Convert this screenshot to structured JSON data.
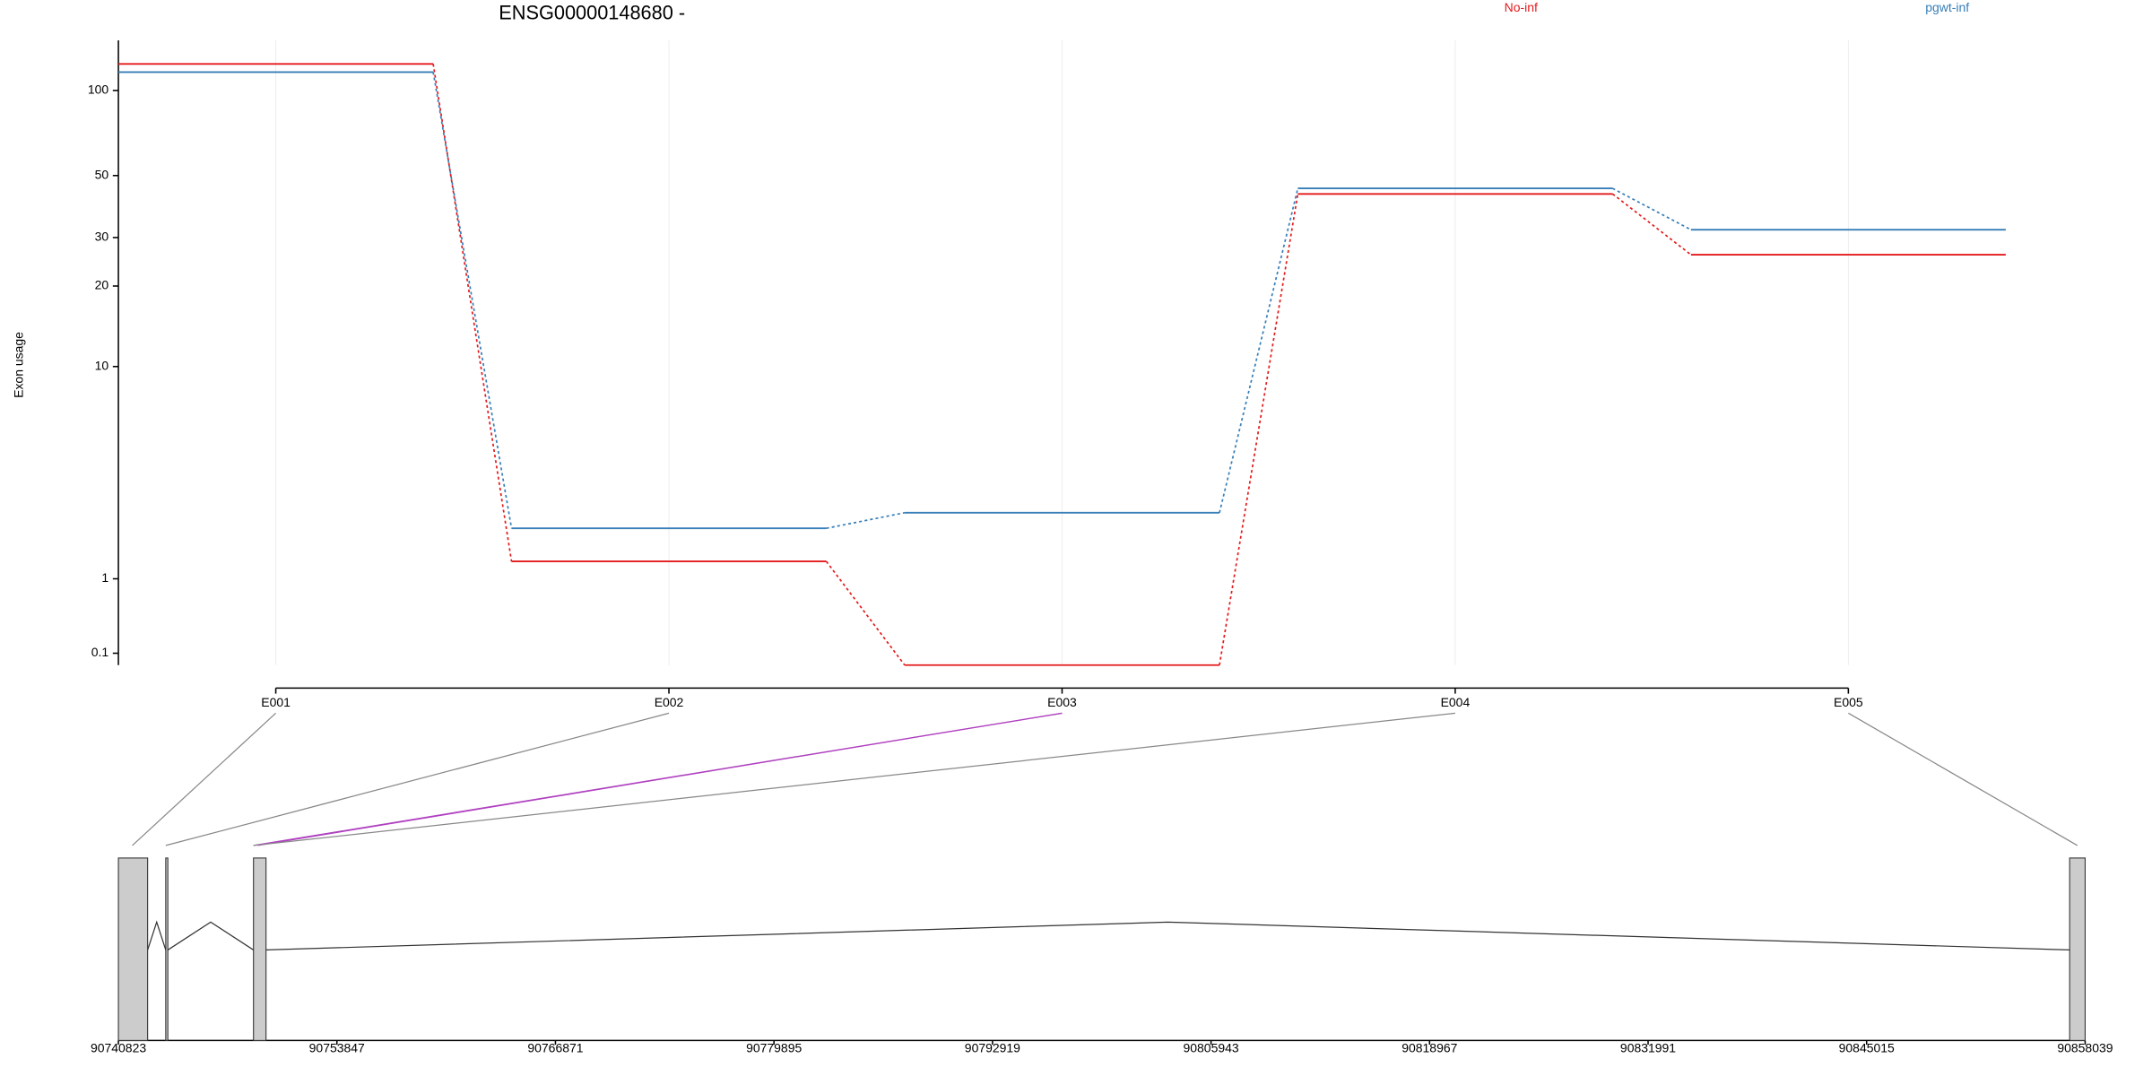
{
  "chart_data": [
    {
      "type": "line",
      "title": "ENSG00000148680 -",
      "ylabel": "Exon usage",
      "yscale": "log1p",
      "categories": [
        "E001",
        "E002",
        "E003",
        "E004",
        "E005"
      ],
      "series": [
        {
          "name": "No-inf",
          "color": "#e31a1c",
          "values": [
            124,
            1.3,
            0,
            43,
            26
          ]
        },
        {
          "name": "pgwt-inf",
          "color": "#377eb8",
          "values": [
            116,
            2.0,
            2.4,
            45,
            32
          ]
        }
      ],
      "ylim": [
        0,
        150
      ],
      "yticks": [
        0.1,
        1,
        10,
        20,
        30,
        50,
        100
      ],
      "grid": true,
      "legend": "top-right"
    },
    {
      "type": "gene-model",
      "xlim": [
        90740823,
        90858039
      ],
      "xticks": [
        90740823,
        90753847,
        90766871,
        90779895,
        90792919,
        90805943,
        90818967,
        90831991,
        90845015,
        90858039
      ],
      "exon_starts": [
        90740823,
        90743645,
        90748875,
        90857116
      ],
      "exon_ends": [
        90742566,
        90743770,
        90749621,
        90858039
      ]
    }
  ]
}
